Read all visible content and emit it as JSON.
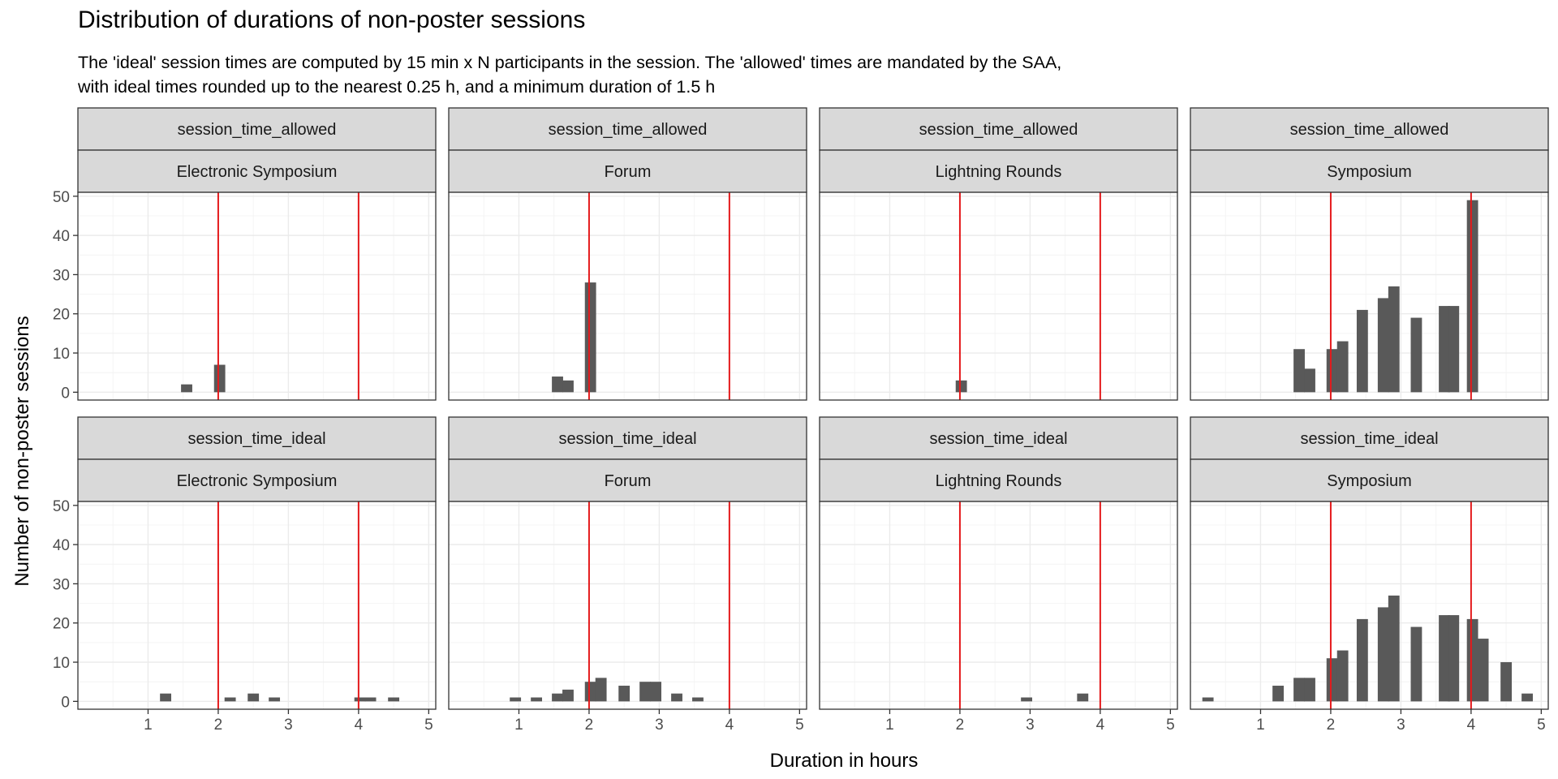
{
  "chart_data": {
    "type": "bar",
    "title": "Distribution of durations of non-poster sessions",
    "subtitle": [
      "The 'ideal' session times are computed by 15 min x N participants in the session. The 'allowed' times are mandated by the SAA,",
      "with ideal times rounded up to the nearest 0.25 h, and a minimum duration of 1.5  h"
    ],
    "xlabel": "Duration in hours",
    "ylabel": "Number of non-poster sessions",
    "xlim": [
      0,
      5.1
    ],
    "ylim": [
      -2,
      51
    ],
    "x_ticks": [
      1,
      2,
      3,
      4,
      5
    ],
    "y_ticks": [
      0,
      10,
      20,
      30,
      40,
      50
    ],
    "bin_width": 0.16,
    "reference_lines_x": [
      2,
      4
    ],
    "colors": {
      "bar": "#595959",
      "reference_line": "#e41a1c",
      "strip_fill": "#d9d9d9",
      "grid": "#ebebeb"
    },
    "facet_rows": [
      "session_time_allowed",
      "session_time_ideal"
    ],
    "facet_cols": [
      "Electronic Symposium",
      "Forum",
      "Lightning Rounds",
      "Symposium"
    ],
    "panels": [
      {
        "row": "session_time_allowed",
        "col": "Electronic Symposium",
        "x": [
          1.55,
          2.02
        ],
        "values": [
          2,
          7
        ]
      },
      {
        "row": "session_time_allowed",
        "col": "Forum",
        "x": [
          1.55,
          1.7,
          2.02
        ],
        "values": [
          4,
          3,
          28
        ]
      },
      {
        "row": "session_time_allowed",
        "col": "Lightning Rounds",
        "x": [
          2.02
        ],
        "values": [
          3
        ]
      },
      {
        "row": "session_time_allowed",
        "col": "Symposium",
        "x": [
          1.55,
          1.7,
          2.02,
          2.17,
          2.45,
          2.75,
          2.9,
          3.22,
          3.62,
          3.75,
          4.02
        ],
        "values": [
          11,
          6,
          11,
          13,
          21,
          24,
          27,
          19,
          22,
          22,
          49
        ]
      },
      {
        "row": "session_time_ideal",
        "col": "Electronic Symposium",
        "x": [
          1.25,
          2.17,
          2.5,
          2.8,
          4.02,
          4.17,
          4.5
        ],
        "values": [
          2,
          1,
          2,
          1,
          1,
          1,
          1
        ]
      },
      {
        "row": "session_time_ideal",
        "col": "Forum",
        "x": [
          0.95,
          1.25,
          1.55,
          1.7,
          2.02,
          2.17,
          2.5,
          2.8,
          2.95,
          3.25,
          3.55
        ],
        "values": [
          1,
          1,
          2,
          3,
          5,
          6,
          4,
          5,
          5,
          2,
          1
        ]
      },
      {
        "row": "session_time_ideal",
        "col": "Lightning Rounds",
        "x": [
          2.95,
          3.75
        ],
        "values": [
          1,
          2
        ]
      },
      {
        "row": "session_time_ideal",
        "col": "Symposium",
        "x": [
          0.25,
          1.25,
          1.55,
          1.7,
          2.02,
          2.17,
          2.45,
          2.75,
          2.9,
          3.22,
          3.62,
          3.75,
          4.02,
          4.17,
          4.5,
          4.8
        ],
        "values": [
          1,
          4,
          6,
          6,
          11,
          13,
          21,
          24,
          27,
          19,
          22,
          22,
          21,
          16,
          10,
          2
        ]
      }
    ]
  }
}
